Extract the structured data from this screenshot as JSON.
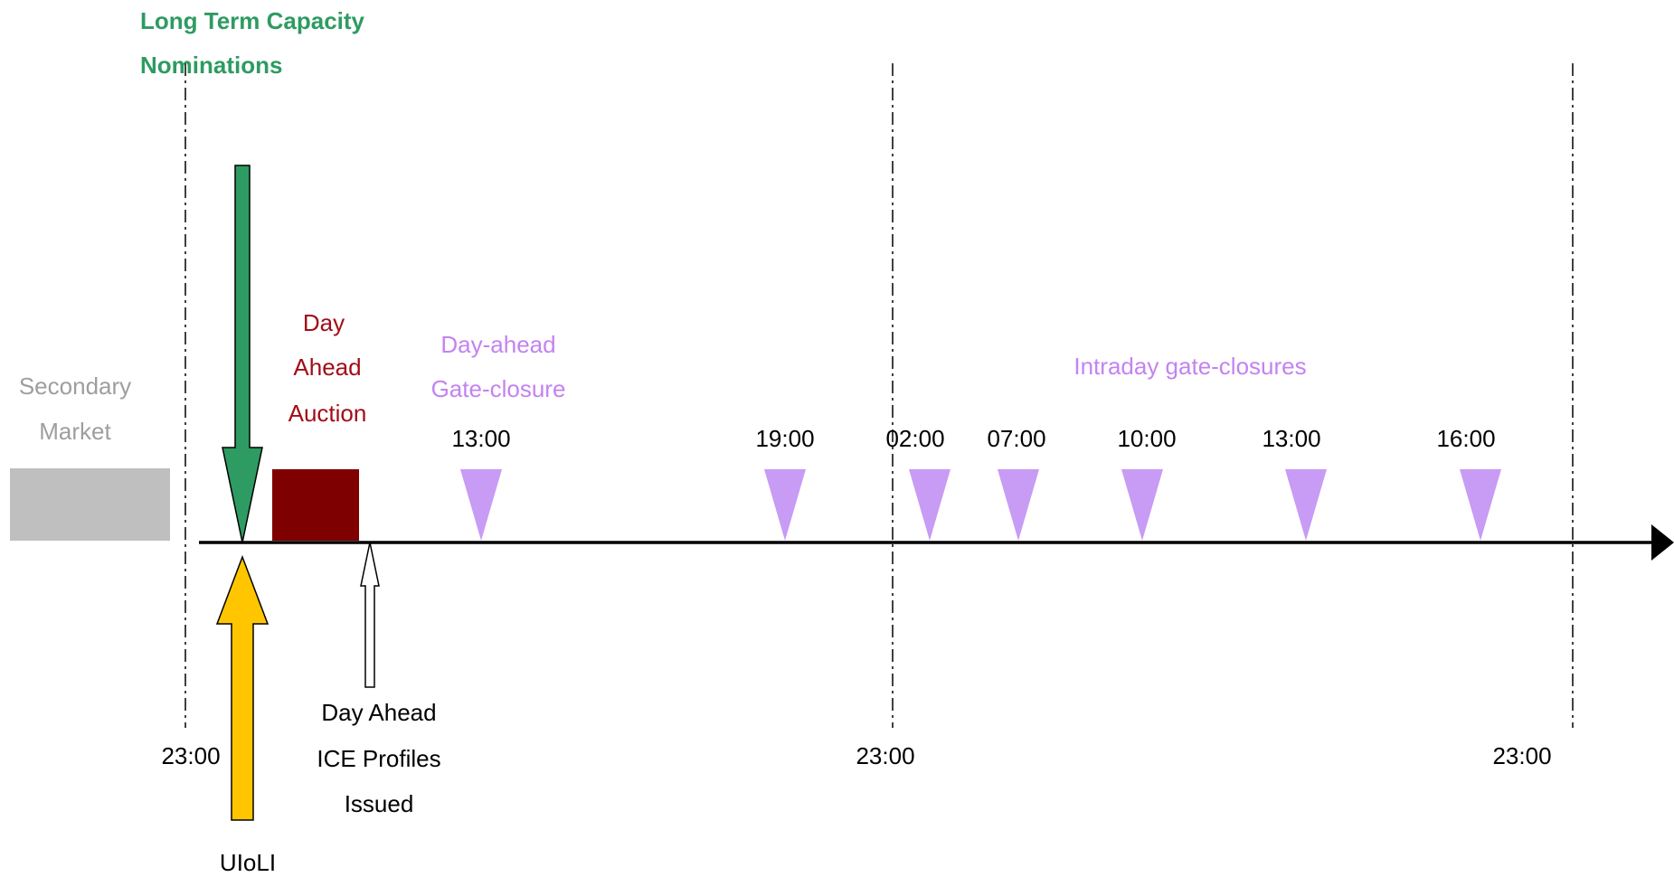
{
  "title": {
    "line1": "Long Term Capacity",
    "line2": "Nominations"
  },
  "secondary_market": {
    "line1": "Secondary",
    "line2": "Market"
  },
  "day_ahead_auction": {
    "line1": "Day",
    "line2": "Ahead",
    "line3": "Auction"
  },
  "day_ahead_gate_closure": {
    "line1": "Day-ahead",
    "line2": "Gate-closure"
  },
  "intraday_label": "Intraday gate-closures",
  "gate_times": [
    "13:00",
    "19:00",
    "02:00",
    "07:00",
    "10:00",
    "13:00",
    "16:00"
  ],
  "boundary_times": [
    "23:00",
    "23:00",
    "23:00"
  ],
  "ice_profiles": {
    "line1": "Day Ahead",
    "line2": "ICE Profiles",
    "line3": "Issued"
  },
  "uioli_label": "UIoLI",
  "colors": {
    "nominations_green": "#2E9B62",
    "gate_purple": "#C383F2",
    "auction_darkred": "#7F0000",
    "auction_text": "#A10D17",
    "secondary_gray": "#BFBFBF",
    "uioli_yellow": "#FFC600"
  }
}
